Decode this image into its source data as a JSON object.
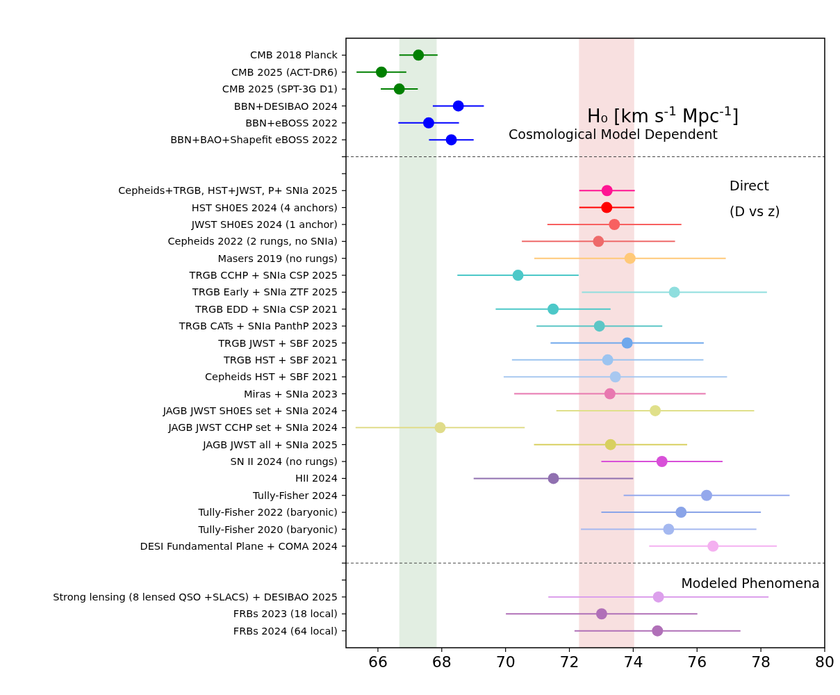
{
  "chart_data": {
    "type": "scatter",
    "orientation": "horizontal",
    "marker": "circle",
    "categories": [
      "CMB 2018 Planck",
      "CMB 2025 (ACT-DR6)",
      "CMB 2025 (SPT-3G D1)",
      "BBN+DESIBAO 2024",
      "BBN+eBOSS 2022",
      "BBN+BAO+Shapefit eBOSS 2022",
      null,
      null,
      "Cepheids+TRGB, HST+JWST, P+ SNIa 2025",
      "HST SH0ES 2024 (4 anchors)",
      "JWST SH0ES 2024 (1 anchor)",
      "Cepheids 2022 (2 rungs, no SNIa)",
      "Masers 2019 (no rungs)",
      "TRGB CCHP + SNIa CSP 2025",
      "TRGB Early + SNIa ZTF 2025",
      "TRGB EDD + SNIa CSP 2021",
      "TRGB CATs + SNIa PanthP 2023",
      "TRGB JWST + SBF 2025",
      "TRGB HST + SBF 2021",
      "Cepheids HST + SBF 2021",
      "Miras + SNIa 2023",
      "JAGB JWST SH0ES set + SNIa 2024",
      "JAGB JWST CCHP set + SNIa 2024",
      "JAGB JWST all + SNIa 2025",
      "SN II 2024 (no rungs)",
      "HII 2024",
      "Tully-Fisher 2024",
      "Tully-Fisher 2022 (baryonic)",
      "Tully-Fisher 2020 (baryonic)",
      "DESI Fundamental Plane + COMA 2024",
      null,
      null,
      "Strong lensing (8 lensed QSO +SLACS) + DESIBAO 2025",
      "FRBs 2023 (18 local)",
      "FRBs 2024 (64 local)"
    ],
    "values": [
      67.27,
      66.11,
      66.67,
      68.52,
      67.59,
      68.3,
      null,
      null,
      73.18,
      73.17,
      73.41,
      72.91,
      73.9,
      70.39,
      75.29,
      71.49,
      72.94,
      73.81,
      73.2,
      73.44,
      73.27,
      74.69,
      67.95,
      73.29,
      74.9,
      71.5,
      76.3,
      75.5,
      75.11,
      76.5,
      null,
      null,
      74.79,
      73.01,
      74.76
    ],
    "errors": [
      0.6,
      0.78,
      0.58,
      0.8,
      0.95,
      0.7,
      null,
      null,
      0.87,
      0.86,
      2.1,
      2.4,
      3.0,
      1.9,
      2.9,
      1.8,
      1.97,
      2.4,
      3.0,
      3.5,
      3.0,
      3.1,
      2.65,
      2.4,
      1.9,
      2.5,
      2.6,
      2.5,
      2.75,
      2.0,
      null,
      null,
      3.45,
      3.0,
      2.6
    ],
    "colors": [
      "#008000",
      "#008000",
      "#008000",
      "#0000ff",
      "#0000ff",
      "#0000ff",
      null,
      null,
      "#ff1493",
      "#ff0000",
      "#f86060",
      "#ee6a6a",
      "#ffc978",
      "#4cc8c8",
      "#8fdede",
      "#4cc8c8",
      "#5cc6c6",
      "#6fa8ec",
      "#9cc4f0",
      "#a8c8f0",
      "#e878b0",
      "#e0e08a",
      "#e0dc8a",
      "#d8d060",
      "#d850d8",
      "#9070b0",
      "#94a8ec",
      "#8aa4e8",
      "#a4b8f0",
      "#f4b0f0",
      null,
      null,
      "#dca0ec",
      "#b070b8",
      "#b070b8"
    ],
    "xlim": [
      65,
      80
    ],
    "xticks": [
      66,
      68,
      70,
      72,
      74,
      76,
      78,
      80
    ],
    "bands": [
      {
        "axis": "x",
        "from": 66.67,
        "to": 67.84,
        "color": "#e2eee2"
      },
      {
        "axis": "x",
        "from": 72.3,
        "to": 74.03,
        "color": "#f8e0e0"
      }
    ],
    "annotations": [
      "H₀ [km s$^{-1}$ Mpc$^{-1}$]",
      "Cosmological Model Dependent",
      "Direct",
      "(D vs z)",
      "Modeled Phenomena"
    ]
  }
}
